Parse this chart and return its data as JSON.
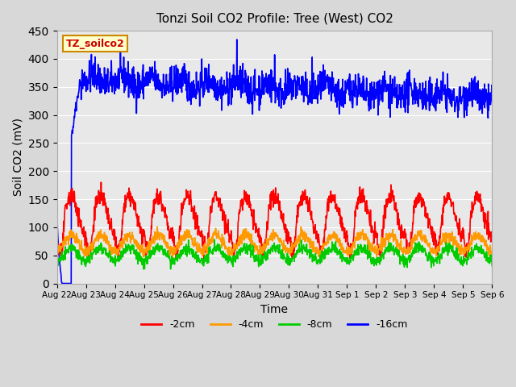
{
  "title": "Tonzi Soil CO2 Profile: Tree (West) CO2",
  "xlabel": "Time",
  "ylabel": "Soil CO2 (mV)",
  "ylim": [
    0,
    450
  ],
  "xlim_days": 15,
  "background_color": "#e8e8e8",
  "plot_bg_color": "#e8e8e8",
  "legend_label": "TZ_soilco2",
  "legend_box_color": "#ffffcc",
  "legend_box_edge": "#cc8800",
  "series": {
    "neg2cm": {
      "label": "-2cm",
      "color": "#ff0000",
      "lw": 1.2
    },
    "neg4cm": {
      "label": "-4cm",
      "color": "#ff9900",
      "lw": 1.2
    },
    "neg8cm": {
      "label": "-8cm",
      "color": "#00cc00",
      "lw": 1.2
    },
    "neg16cm": {
      "label": "-16cm",
      "color": "#0000ff",
      "lw": 1.2
    }
  },
  "tick_labels": [
    "Aug 22",
    "Aug 23",
    "Aug 24",
    "Aug 25",
    "Aug 26",
    "Aug 27",
    "Aug 28",
    "Aug 29",
    "Aug 30",
    "Aug 31",
    "Sep 1",
    "Sep 2",
    "Sep 3",
    "Sep 4",
    "Sep 5",
    "Sep 6"
  ],
  "yticks": [
    0,
    50,
    100,
    150,
    200,
    250,
    300,
    350,
    400,
    450
  ],
  "n_points": 1440,
  "seed": 42
}
